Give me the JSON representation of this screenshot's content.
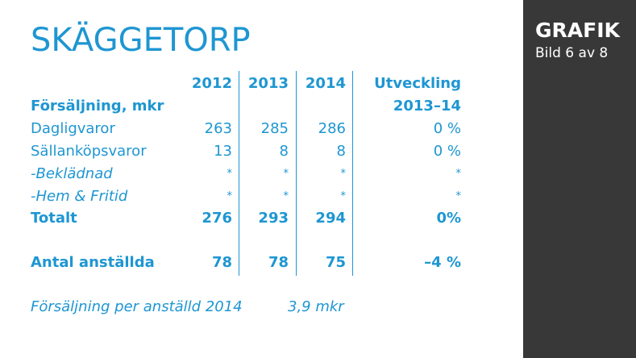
{
  "title": "SKÄGGETORP",
  "sidebar": {
    "label": "GRAFIK",
    "slide": "Bild 6 av 8"
  },
  "table": {
    "headers": {
      "y2012": "2012",
      "y2013": "2013",
      "y2014": "2014",
      "change": "Utveckling"
    },
    "section_label": "Försäljning, mkr",
    "change_period": "2013–14",
    "rows": [
      {
        "label": "Dagligvaror",
        "v2012": "263",
        "v2013": "285",
        "v2014": "286",
        "change": "0 %"
      },
      {
        "label": "Sällanköpsvaror",
        "v2012": "13",
        "v2013": "8",
        "v2014": "8",
        "change": "0 %"
      },
      {
        "label": "-Beklädnad",
        "v2012": "*",
        "v2013": "*",
        "v2014": "*",
        "change": "*"
      },
      {
        "label": "-Hem & Fritid",
        "v2012": "*",
        "v2013": "*",
        "v2014": "*",
        "change": "*"
      },
      {
        "label": "Totalt",
        "v2012": "276",
        "v2013": "293",
        "v2014": "294",
        "change": "0%"
      },
      {
        "label": "Antal anställda",
        "v2012": "78",
        "v2013": "78",
        "v2014": "75",
        "change": "–4 %"
      }
    ]
  },
  "footer": {
    "label": "Försäljning per anställd 2014",
    "value": "3,9 mkr"
  }
}
